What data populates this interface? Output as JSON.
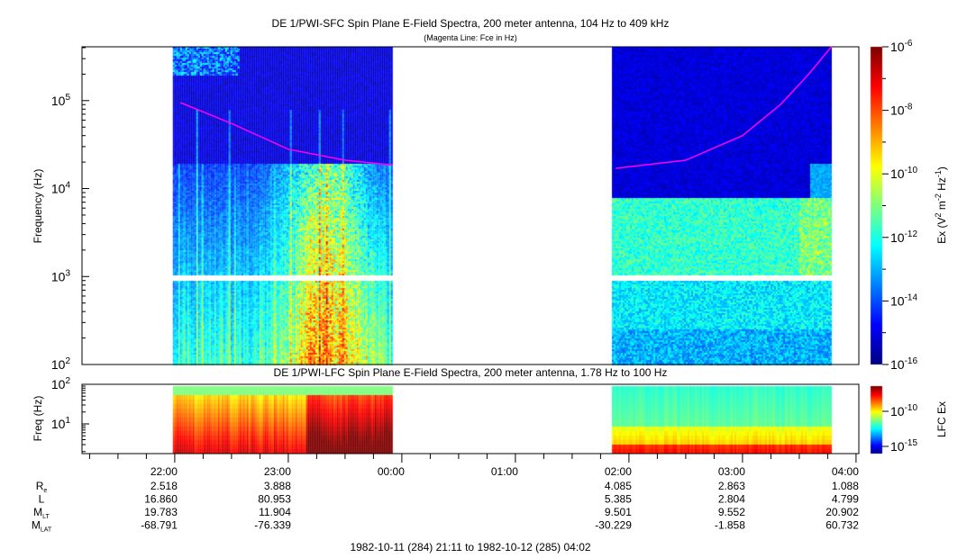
{
  "chart_data": [
    {
      "type": "heatmap",
      "title": "DE 1/PWI-SFC  Spin Plane E-Field Spectra, 200 meter antenna, 104 Hz to 409 kHz",
      "subtitle": "(Magenta Line: Fce in Hz)",
      "ylabel": "Frequency (Hz)",
      "yscale": "log",
      "ylim": [
        100,
        409000
      ],
      "ytick_labels": [
        "10^2",
        "10^3",
        "10^4",
        "10^5"
      ],
      "data_intervals": [
        [
          "21:59",
          "23:55"
        ],
        [
          "01:51",
          "03:47"
        ]
      ],
      "gap_band_hz": [
        900,
        1050
      ],
      "colorbar": {
        "label": "Ex (V^2 m^-2 Hz^-1)",
        "scale": "log",
        "range": [
          1e-16,
          1e-06
        ],
        "tick_labels": [
          "10^-6",
          "10^-8",
          "10^-10",
          "10^-12",
          "10^-14",
          "10^-16"
        ],
        "colormap": "jet"
      },
      "fce_line": {
        "color": "#ff00ff",
        "segments": [
          [
            [
              "22:03",
              95000
            ],
            [
              "22:30",
              55000
            ],
            [
              "23:00",
              28000
            ],
            [
              "23:30",
              21000
            ],
            [
              "23:55",
              18500
            ]
          ],
          [
            [
              "01:53",
              17000
            ],
            [
              "02:30",
              21000
            ],
            [
              "03:00",
              40000
            ],
            [
              "03:20",
              90000
            ],
            [
              "03:35",
              200000
            ],
            [
              "03:47",
              410000
            ]
          ]
        ]
      }
    },
    {
      "type": "heatmap",
      "title": "DE 1/PWI-LFC  Spin Plane E-Field Spectra, 200 meter antenna, 1.78 Hz to 100 Hz",
      "ylabel": "Freq (Hz)",
      "yscale": "log",
      "ylim": [
        1.78,
        100
      ],
      "ytick_labels": [
        "10^1",
        "10^2"
      ],
      "data_intervals": [
        [
          "21:59",
          "23:55"
        ],
        [
          "01:51",
          "03:47"
        ]
      ],
      "colorbar": {
        "label": "LFC Ex",
        "scale": "log",
        "tick_labels": [
          "10^-10",
          "10^-15"
        ],
        "colormap": "jet"
      }
    }
  ],
  "time_axis": {
    "tick_labels": [
      "22:00",
      "23:00",
      "00:00",
      "01:00",
      "02:00",
      "03:00",
      "04:00"
    ],
    "range_label": "1982-10-11 (284) 21:11 to 1982-10-12 (285) 04:02"
  },
  "ephemeris": {
    "rows": [
      {
        "label": "R",
        "sub": "e",
        "values": [
          "2.518",
          "3.888",
          "",
          "",
          "4.085",
          "2.863",
          "1.088"
        ]
      },
      {
        "label": "L",
        "sub": "",
        "values": [
          "16.860",
          "80.953",
          "",
          "",
          "5.385",
          "2.804",
          "4.799"
        ]
      },
      {
        "label": "M",
        "sub": "LT",
        "values": [
          "19.783",
          "11.904",
          "",
          "",
          "9.501",
          "9.552",
          "20.902"
        ]
      },
      {
        "label": "M",
        "sub": "LAT",
        "values": [
          "-68.791",
          "-76.339",
          "",
          "",
          "-30.229",
          "-1.858",
          "60.732"
        ]
      }
    ]
  }
}
